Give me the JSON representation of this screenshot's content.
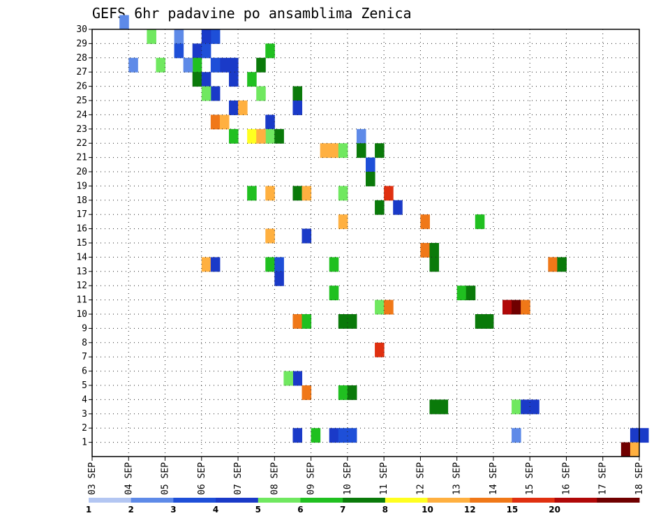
{
  "chart_data": {
    "type": "heatmap",
    "title": "GEFS 6hr padavine po ansamblima Zenica",
    "xlabel": "",
    "ylabel": "",
    "x_tick_labels": [
      "03 SEP",
      "04 SEP",
      "05 SEP",
      "06 SEP",
      "07 SEP",
      "08 SEP",
      "09 SEP",
      "10 SEP",
      "11 SEP",
      "12 SEP",
      "13 SEP",
      "14 SEP",
      "15 SEP",
      "16 SEP",
      "17 SEP",
      "18 SEP"
    ],
    "x_steps_per_day": 4,
    "x_range_steps": [
      0,
      60
    ],
    "y_tick_labels": [
      1,
      2,
      3,
      4,
      5,
      6,
      7,
      8,
      9,
      10,
      11,
      12,
      13,
      14,
      15,
      16,
      17,
      18,
      19,
      20,
      21,
      22,
      23,
      24,
      25,
      26,
      27,
      28,
      29,
      30
    ],
    "y_range": [
      0,
      30
    ],
    "grid": true,
    "color_scale": {
      "levels": [
        1,
        2,
        3,
        4,
        5,
        6,
        7,
        8,
        10,
        12,
        15,
        20
      ],
      "colors": [
        "#b3c6f2",
        "#5e8ae8",
        "#1e4fd8",
        "#1a3ac8",
        "#70e860",
        "#20c020",
        "#0a7a0a",
        "#ffff20",
        "#ffb040",
        "#f07818",
        "#e03010",
        "#b00808",
        "#700000"
      ]
    },
    "cells": [
      [
        3,
        30,
        1
      ],
      [
        13,
        29,
        2
      ],
      [
        12,
        29,
        3
      ],
      [
        9,
        29,
        1
      ],
      [
        6,
        29,
        4
      ],
      [
        9,
        28,
        2
      ],
      [
        11,
        28,
        3
      ],
      [
        12,
        28,
        2
      ],
      [
        19,
        28,
        5
      ],
      [
        4,
        27,
        1
      ],
      [
        14,
        27,
        3
      ],
      [
        15,
        27,
        3
      ],
      [
        13,
        27,
        2
      ],
      [
        18,
        27,
        6
      ],
      [
        7,
        27,
        4
      ],
      [
        11,
        27,
        5
      ],
      [
        10,
        27,
        1
      ],
      [
        11,
        26,
        6
      ],
      [
        12,
        26,
        3
      ],
      [
        15,
        26,
        3
      ],
      [
        17,
        26,
        5
      ],
      [
        13,
        25,
        3
      ],
      [
        12,
        25,
        4
      ],
      [
        18,
        25,
        4
      ],
      [
        22,
        25,
        6
      ],
      [
        22,
        24,
        3
      ],
      [
        15,
        24,
        3
      ],
      [
        16,
        24,
        9
      ],
      [
        19,
        23,
        3
      ],
      [
        13,
        23,
        10
      ],
      [
        14,
        23,
        9
      ],
      [
        19,
        22,
        4
      ],
      [
        15,
        22,
        5
      ],
      [
        17,
        22,
        7
      ],
      [
        18,
        22,
        8
      ],
      [
        20,
        22,
        6
      ],
      [
        29,
        22,
        1
      ],
      [
        25,
        21,
        8
      ],
      [
        29,
        21,
        6
      ],
      [
        31,
        21,
        6
      ],
      [
        26,
        21,
        8
      ],
      [
        27,
        21,
        4
      ],
      [
        30,
        20,
        2
      ],
      [
        30,
        19,
        6
      ],
      [
        27,
        18,
        4
      ],
      [
        19,
        18,
        8
      ],
      [
        22,
        18,
        6
      ],
      [
        23,
        18,
        9
      ],
      [
        17,
        18,
        5
      ],
      [
        32,
        18,
        12
      ],
      [
        31,
        17,
        6
      ],
      [
        33,
        17,
        3
      ],
      [
        36,
        16,
        10
      ],
      [
        27,
        16,
        9
      ],
      [
        42,
        16,
        5
      ],
      [
        23,
        15,
        3
      ],
      [
        19,
        15,
        8
      ],
      [
        36,
        14,
        11
      ],
      [
        37,
        14,
        6
      ],
      [
        12,
        13,
        8
      ],
      [
        13,
        13,
        3
      ],
      [
        19,
        13,
        5
      ],
      [
        26,
        13,
        5
      ],
      [
        20,
        13,
        2
      ],
      [
        37,
        13,
        6
      ],
      [
        50,
        13,
        11
      ],
      [
        51,
        13,
        6
      ],
      [
        20,
        12,
        3
      ],
      [
        40,
        11,
        5
      ],
      [
        41,
        11,
        6
      ],
      [
        26,
        11,
        5
      ],
      [
        31,
        10,
        4
      ],
      [
        32,
        10,
        11
      ],
      [
        45,
        10,
        15
      ],
      [
        46,
        10,
        20
      ],
      [
        47,
        10,
        10
      ],
      [
        22,
        9,
        10
      ],
      [
        23,
        9,
        5
      ],
      [
        42,
        9,
        6
      ],
      [
        43,
        9,
        6
      ],
      [
        27,
        9,
        6
      ],
      [
        28,
        9,
        6
      ],
      [
        31,
        7,
        13
      ],
      [
        22,
        5,
        3
      ],
      [
        21,
        5,
        4
      ],
      [
        23,
        4,
        10
      ],
      [
        27,
        4,
        5
      ],
      [
        28,
        4,
        6
      ],
      [
        37,
        3,
        6
      ],
      [
        38,
        3,
        6
      ],
      [
        46,
        3,
        4
      ],
      [
        47,
        3,
        3
      ],
      [
        48,
        3,
        3
      ],
      [
        22,
        1,
        3
      ],
      [
        24,
        1,
        5
      ],
      [
        26,
        1,
        3
      ],
      [
        27,
        1,
        2
      ],
      [
        28,
        1,
        2
      ],
      [
        46,
        1,
        1
      ],
      [
        59,
        1,
        3
      ],
      [
        60,
        1,
        3
      ],
      [
        58,
        0,
        20
      ],
      [
        59,
        0,
        9
      ]
    ]
  },
  "colorbar_labels": [
    "1",
    "2",
    "3",
    "4",
    "5",
    "6",
    "7",
    "8",
    "10",
    "12",
    "15",
    "20"
  ]
}
